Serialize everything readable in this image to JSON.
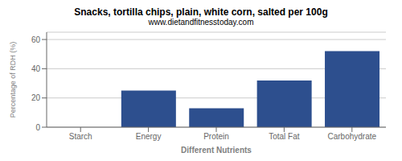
{
  "chart_data": {
    "type": "bar",
    "title": "Snacks, tortilla chips, plain, white corn, salted per 100g",
    "subtitle": "www.dietandfitnesstoday.com",
    "xlabel": "Different Nutrients",
    "ylabel": "Percentage of RDH (%)",
    "categories": [
      "Starch",
      "Energy",
      "Protein",
      "Total Fat",
      "Carbohydrate"
    ],
    "values": [
      0,
      25,
      13,
      32,
      52
    ],
    "color": "#2d4f8e",
    "ylim": [
      0,
      65
    ],
    "yticks": [
      0,
      20,
      40,
      60
    ],
    "grid": true
  }
}
